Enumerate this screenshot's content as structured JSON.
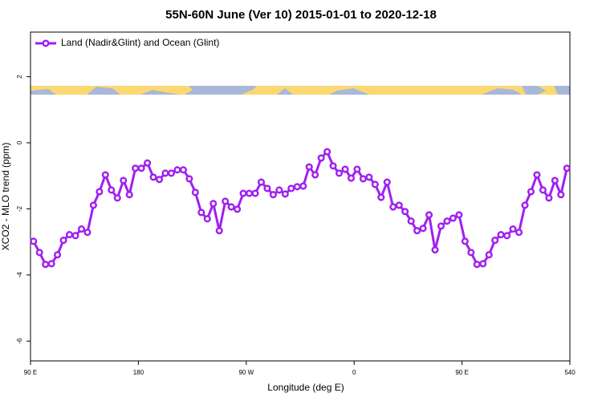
{
  "chart_data": {
    "type": "line",
    "title": "55N-60N June (Ver 10)   2015-01-01 to 2020-12-18",
    "x_label": "Longitude (deg E)",
    "y_label": "XCO2 - MLO trend (ppm)",
    "x": [
      92.5,
      97.5,
      102.5,
      107.5,
      112.5,
      117.5,
      122.5,
      127.5,
      132.5,
      137.5,
      142.5,
      147.5,
      152.5,
      157.5,
      162.5,
      167.5,
      172.5,
      177.5,
      182.5,
      187.5,
      192.5,
      197.5,
      202.5,
      207.5,
      212.5,
      217.5,
      222.5,
      227.5,
      232.5,
      237.5,
      242.5,
      247.5,
      252.5,
      257.5,
      262.5,
      267.5,
      272.5,
      277.5,
      282.5,
      287.5,
      292.5,
      297.5,
      302.5,
      307.5,
      312.5,
      317.5,
      322.5,
      327.5,
      332.5,
      337.5,
      342.5,
      347.5,
      352.5,
      357.5,
      362.5,
      367.5,
      372.5,
      377.5,
      382.5,
      387.5,
      392.5,
      397.5,
      402.5,
      407.5,
      412.5,
      417.5,
      422.5,
      427.5,
      432.5,
      437.5,
      442.5,
      447.5,
      452.5,
      457.5,
      462.5,
      467.5,
      472.5,
      477.5,
      482.5,
      487.5,
      492.5,
      497.5,
      502.5,
      507.5,
      512.5,
      517.5,
      522.5,
      527.5,
      532.5,
      537.5
    ],
    "series": [
      {
        "name": "Land (Nadir&Glint) and Ocean (Glint)",
        "color": "#a020f0",
        "values": [
          -2.98,
          -3.32,
          -3.68,
          -3.66,
          -3.39,
          -2.95,
          -2.78,
          -2.81,
          -2.61,
          -2.71,
          -1.89,
          -1.48,
          -0.97,
          -1.43,
          -1.67,
          -1.14,
          -1.57,
          -0.77,
          -0.77,
          -0.61,
          -1.04,
          -1.11,
          -0.92,
          -0.92,
          -0.82,
          -0.82,
          -1.09,
          -1.5,
          -2.11,
          -2.3,
          -1.84,
          -2.66,
          -1.77,
          -1.94,
          -2.01,
          -1.53,
          -1.53,
          -1.53,
          -1.19,
          -1.38,
          -1.57,
          -1.43,
          -1.55,
          -1.38,
          -1.33,
          -1.31,
          -0.73,
          -0.97,
          -0.46,
          -0.27,
          -0.7,
          -0.92,
          -0.8,
          -1.07,
          -0.8,
          -1.09,
          -1.04,
          -1.26,
          -1.65,
          -1.19,
          -1.94,
          -1.89,
          -2.08,
          -2.37,
          -2.66,
          -2.59,
          -2.18,
          -3.24,
          -2.52,
          -2.37,
          -2.28,
          -2.18,
          -2.98,
          -3.32,
          -3.68,
          -3.66,
          -3.39,
          -2.95,
          -2.78,
          -2.81,
          -2.61,
          -2.71,
          -1.89,
          -1.48,
          -0.97,
          -1.43,
          -1.67,
          -1.14,
          -1.57,
          -0.77
        ]
      }
    ],
    "xlim": [
      90,
      540
    ],
    "xticks": [
      {
        "value": 90,
        "label": "90 E"
      },
      180,
      {
        "value": 270,
        "label": "90 W"
      },
      {
        "value": 360,
        "label": "0"
      },
      {
        "value": 450,
        "label": "90 E"
      },
      540
    ],
    "ylim": [
      -6.6,
      3.35
    ],
    "yticks": [
      -6,
      -4,
      -2,
      0,
      2
    ],
    "legend": "top-left"
  }
}
